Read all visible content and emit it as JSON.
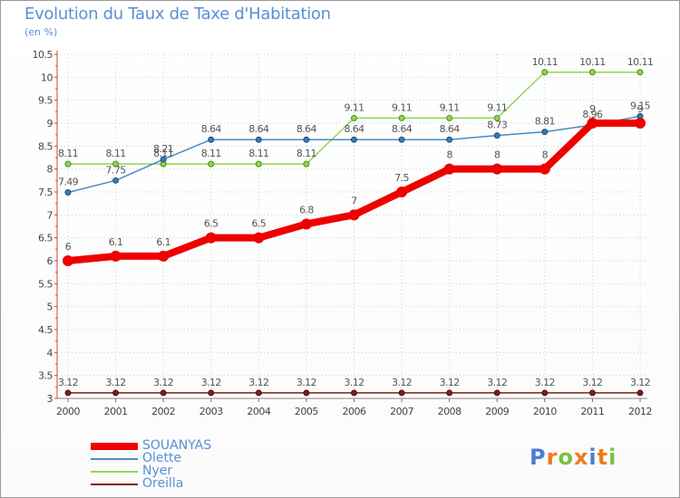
{
  "chart": {
    "title": "Evolution du Taux de Taxe d'Habitation",
    "subtitle": "(en %)"
  },
  "logo": {
    "text": "Proxiti",
    "letter_colors": [
      "#4a7fd6",
      "#f07a1a",
      "#7ac142",
      "#f07a1a",
      "#4a7fd6",
      "#f07a1a",
      "#7ac142"
    ]
  },
  "colors": {
    "SOUANYAS": "#ee0000",
    "Olette": "#4a8ac6",
    "Nyer": "#8ed84a",
    "Oreilla": "#7a1f1f",
    "grid": "#cfcfcf",
    "label": "#5a8fd6"
  },
  "chart_data": {
    "type": "line",
    "title": "Evolution du Taux de Taxe d'Habitation",
    "subtitle": "(en %)",
    "xlabel": "",
    "ylabel": "",
    "ylim": [
      3,
      10.5
    ],
    "yticks": [
      "3",
      "3.5",
      "4",
      "4.5",
      "5",
      "5.5",
      "6",
      "6.5",
      "7",
      "7.5",
      "8",
      "8.5",
      "9",
      "9.5",
      "10",
      "10.5"
    ],
    "x": [
      "2000",
      "2001",
      "2002",
      "2003",
      "2004",
      "2005",
      "2006",
      "2007",
      "2008",
      "2009",
      "2010",
      "2011",
      "2012"
    ],
    "grid": true,
    "legend": "bottom-left",
    "series": [
      {
        "name": "SOUANYAS",
        "values": [
          6,
          6.1,
          6.1,
          6.5,
          6.5,
          6.8,
          7,
          7.5,
          8,
          8,
          8,
          9,
          9
        ],
        "labels": [
          "6",
          "6.1",
          "6.1",
          "6.5",
          "6.5",
          "6.8",
          "7",
          "7.5",
          "8",
          "8",
          "8",
          "9",
          "9"
        ]
      },
      {
        "name": "Olette",
        "values": [
          7.49,
          7.75,
          8.21,
          8.64,
          8.64,
          8.64,
          8.64,
          8.64,
          8.64,
          8.73,
          8.81,
          8.96,
          9.15
        ],
        "labels": [
          "7.49",
          "7.75",
          "8.21",
          "8.64",
          "8.64",
          "8.64",
          "8.64",
          "8.64",
          "8.64",
          "8.73",
          "8.81",
          "8.96",
          "9.15"
        ]
      },
      {
        "name": "Nyer",
        "values": [
          8.11,
          8.11,
          8.11,
          8.11,
          8.11,
          8.11,
          9.11,
          9.11,
          9.11,
          9.11,
          10.11,
          10.11,
          10.11
        ],
        "labels": [
          "8.11",
          "8.11",
          "8.11",
          "8.11",
          "8.11",
          "8.11",
          "9.11",
          "9.11",
          "9.11",
          "9.11",
          "10.11",
          "10.11",
          "10.11"
        ]
      },
      {
        "name": "Oreilla",
        "values": [
          3.12,
          3.12,
          3.12,
          3.12,
          3.12,
          3.12,
          3.12,
          3.12,
          3.12,
          3.12,
          3.12,
          3.12,
          3.12
        ],
        "labels": [
          "3.12",
          "3.12",
          "3.12",
          "3.12",
          "3.12",
          "3.12",
          "3.12",
          "3.12",
          "3.12",
          "3.12",
          "3.12",
          "3.12",
          "3.12"
        ]
      }
    ]
  }
}
